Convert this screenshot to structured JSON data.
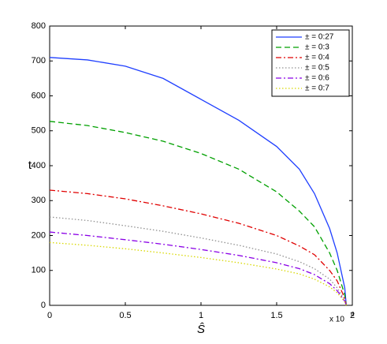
{
  "chart_data": {
    "type": "line",
    "x_label": "Ŝ",
    "y_label": "t",
    "x_scale_label": "x 10",
    "x_scale_exponent": "4",
    "x": [
      0,
      0.25,
      0.5,
      0.75,
      1,
      1.25,
      1.5,
      1.65,
      1.75,
      1.85,
      1.9,
      1.95,
      1.96
    ],
    "series": [
      {
        "name": "± = 0:27",
        "color": "#1f3fff",
        "dash": "",
        "values": [
          710,
          703,
          685,
          650,
          590,
          530,
          455,
          390,
          320,
          220,
          150,
          50,
          0
        ]
      },
      {
        "name": "± = 0:3",
        "color": "#00a000",
        "dash": "7 4",
        "values": [
          527,
          515,
          495,
          470,
          435,
          390,
          325,
          270,
          225,
          150,
          100,
          30,
          0
        ]
      },
      {
        "name": "± = 0:4",
        "color": "#e00000",
        "dash": "7 3 2 3",
        "values": [
          330,
          320,
          305,
          285,
          262,
          235,
          200,
          170,
          145,
          100,
          70,
          20,
          0
        ]
      },
      {
        "name": "± = 0:5",
        "color": "#909090",
        "dash": "1.5 2.5",
        "values": [
          253,
          243,
          228,
          212,
          193,
          172,
          147,
          125,
          105,
          75,
          50,
          15,
          0
        ]
      },
      {
        "name": "± = 0:6",
        "color": "#8a00e6",
        "dash": "7 3 2 3",
        "values": [
          210,
          200,
          188,
          175,
          160,
          143,
          122,
          105,
          88,
          62,
          42,
          12,
          0
        ]
      },
      {
        "name": "± = 0:7",
        "color": "#d8d800",
        "dash": "1.5 2.5",
        "values": [
          180,
          172,
          162,
          150,
          137,
          122,
          104,
          90,
          75,
          53,
          36,
          10,
          0
        ]
      }
    ],
    "xlim": [
      0,
      2
    ],
    "xticks": [
      0,
      0.5,
      1,
      1.5,
      2
    ],
    "ylim": [
      0,
      800
    ],
    "yticks": [
      0,
      100,
      200,
      300,
      400,
      500,
      600,
      700,
      800
    ],
    "legend": "top-right",
    "grid": false
  }
}
